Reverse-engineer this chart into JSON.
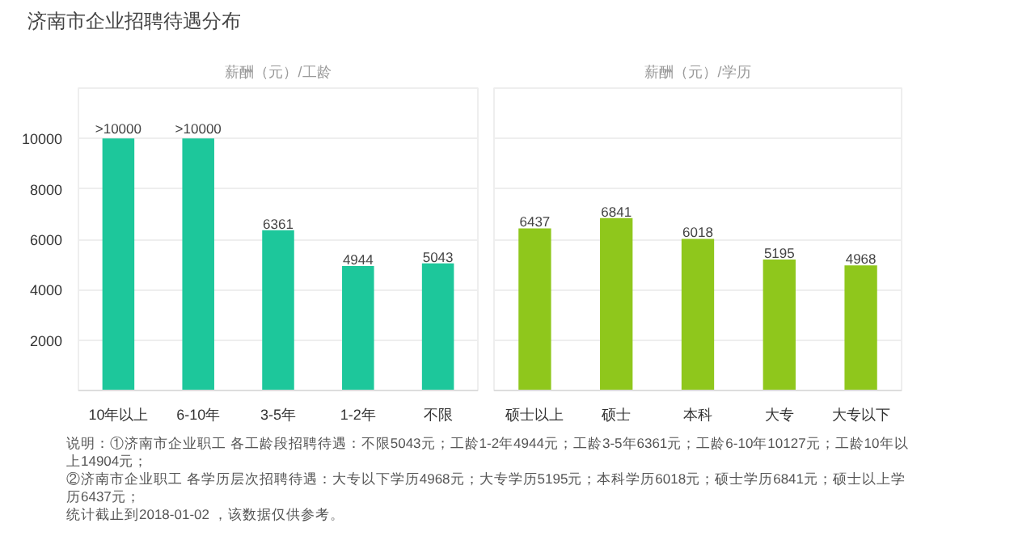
{
  "chart_data": [
    {
      "type": "bar",
      "title": "济南市企业招聘待遇分布",
      "subtitle": "薪酬（元）/工龄",
      "categories": [
        "10年以上",
        "6-10年",
        "3-5年",
        "1-2年",
        "不限"
      ],
      "values": [
        10000,
        10000,
        6361,
        4944,
        5043
      ],
      "value_labels": [
        ">10000",
        ">10000",
        "6361",
        "4944",
        "5043"
      ],
      "color": "#1dc79b",
      "ylim": [
        0,
        12000
      ],
      "yticks": [
        2000,
        4000,
        6000,
        8000,
        10000
      ],
      "grid": "y"
    },
    {
      "type": "bar",
      "subtitle": "薪酬（元）/学历",
      "categories": [
        "硕士以上",
        "硕士",
        "本科",
        "大专",
        "大专以下"
      ],
      "values": [
        6437,
        6841,
        6018,
        5195,
        4968
      ],
      "value_labels": [
        "6437",
        "6841",
        "6018",
        "5195",
        "4968"
      ],
      "color": "#8fc71c",
      "ylim": [
        0,
        12000
      ],
      "yticks": [
        2000,
        4000,
        6000,
        8000,
        10000
      ],
      "grid": "y",
      "tick_labels": "x",
      "annotations": [
        "说明：①济南市企业职工 各工龄段招聘待遇：不限5043元；工龄1-2年4944元；工龄3-5年6361元；工龄6-10年10127元；工龄10年以上14904元；",
        "②济南市企业职工 各学历层次招聘待遇：大专以下学历4968元；大专学历5195元；本科学历6018元；硕士学历6841元；硕士以上学历6437元；",
        "统计截止到2018-01-02 ，该数据仅供参考。"
      ]
    }
  ]
}
